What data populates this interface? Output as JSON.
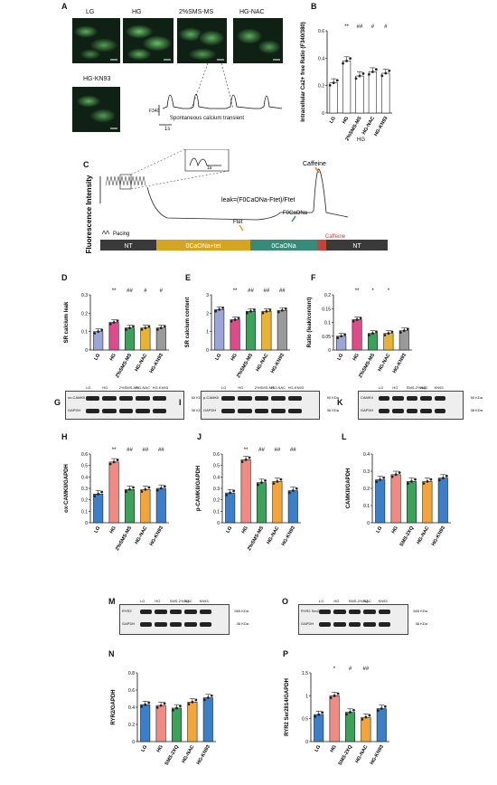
{
  "panels": {
    "A": {
      "label": "A",
      "images": [
        "LG",
        "HG",
        "2%SMS-MS",
        "HG-NAC",
        "HG-KN93"
      ],
      "trace_ylabel": "F340",
      "trace_caption": "Spontaneous calcium transient",
      "scale": "1s"
    },
    "B": {
      "label": "B",
      "group": "HG"
    },
    "C": {
      "label": "C",
      "ylabel": "Fluorescence Intensity",
      "formula": "leak=(F0CaONa-Ftet)/Ftet",
      "caffeine": "Caffeine",
      "pacing": "Pacing",
      "ftet": "Ftet",
      "f0": "F0CaONa",
      "segments": [
        "NT",
        "0CaONa+tet",
        "0CaONa",
        "Caffeine",
        "NT"
      ],
      "inset_label": "1s"
    },
    "D": {
      "label": "D"
    },
    "E": {
      "label": "E"
    },
    "F": {
      "label": "F"
    },
    "G": {
      "label": "G",
      "lanes": [
        "LG",
        "HG",
        "2%SMS-MS",
        "HG-NAC",
        "HG-KN93"
      ],
      "rows": [
        "ox-CAMKII",
        "GAPDH"
      ],
      "kda": [
        "60 KDa",
        "36 KDa"
      ]
    },
    "I": {
      "label": "I",
      "lanes": [
        "LG",
        "HG",
        "2%SMS-MS",
        "HG-NAC",
        "HG-KN93"
      ],
      "rows": [
        "p-CAMKII",
        "GAPDH"
      ],
      "kda": [
        "50 KDa",
        "36 KDa"
      ]
    },
    "K": {
      "label": "K",
      "lanes": [
        "LG",
        "HG",
        "SMS-2%XQ",
        "NAC",
        "KN93"
      ],
      "rows": [
        "CAMKII",
        "GAPDH"
      ],
      "kda": [
        "50 KDa",
        "38 KDa"
      ]
    },
    "M": {
      "label": "M",
      "lanes": [
        "LG",
        "HG",
        "SMS-2%XQ",
        "NAC",
        "KN93"
      ],
      "rows": [
        "RYR2",
        "GAPDH"
      ],
      "kda": [
        "565 KDa",
        "38 KDa"
      ]
    },
    "O": {
      "label": "O",
      "lanes": [
        "LG",
        "HG",
        "SMS-2%XQ",
        "NAC",
        "KN93"
      ],
      "rows": [
        "RYR2 Ser2814",
        "GAPDH"
      ],
      "kda": [
        "565 KDa",
        "38 KDa"
      ]
    },
    "H": {
      "label": "H"
    },
    "J": {
      "label": "J"
    },
    "L": {
      "label": "L"
    },
    "N": {
      "label": "N"
    },
    "P": {
      "label": "P"
    }
  },
  "chart_data": [
    {
      "id": "B",
      "type": "bar",
      "categories": [
        "LG",
        "HG",
        "2%SMS-MS",
        "HG-NAC",
        "HG-KN93"
      ],
      "values": [
        0.22,
        0.38,
        0.27,
        0.3,
        0.29
      ],
      "ylabel": "Intracellular Ca2+ free Ratio (F340/380)",
      "ylim": [
        0,
        0.6
      ],
      "yticks": [
        0,
        0.2,
        0.4,
        0.6
      ],
      "sig": [
        "",
        "**",
        "##",
        "#",
        "#"
      ],
      "colors": [
        "#ffffff",
        "#ffffff",
        "#ffffff",
        "#ffffff",
        "#ffffff"
      ]
    },
    {
      "id": "D",
      "type": "bar",
      "categories": [
        "LG",
        "HG",
        "2%SMS-MS",
        "HG-NAC",
        "HG-KN93"
      ],
      "values": [
        0.1,
        0.15,
        0.12,
        0.12,
        0.12
      ],
      "ylabel": "SR calcium leak",
      "ylim": [
        0,
        0.3
      ],
      "yticks": [
        0,
        0.1,
        0.2,
        0.3
      ],
      "sig": [
        "",
        "**",
        "##",
        "#",
        "#"
      ],
      "colors": [
        "#9aa6d8",
        "#e04a8a",
        "#3aa35a",
        "#e8b232",
        "#9a9a9a"
      ]
    },
    {
      "id": "E",
      "type": "bar",
      "categories": [
        "LG",
        "HG",
        "2%SMS-MS",
        "HG-NAC",
        "HG-KN93"
      ],
      "values": [
        2.2,
        1.65,
        2.1,
        2.1,
        2.15
      ],
      "ylabel": "SR calcium content",
      "ylim": [
        0,
        3
      ],
      "yticks": [
        0,
        1,
        2,
        3
      ],
      "sig": [
        "",
        "**",
        "##",
        "##",
        "##"
      ],
      "colors": [
        "#9aa6d8",
        "#e04a8a",
        "#3aa35a",
        "#e8b232",
        "#9a9a9a"
      ]
    },
    {
      "id": "F",
      "type": "bar",
      "categories": [
        "LG",
        "HG",
        "2%SMS-MS",
        "HG-NAC",
        "HG-KN93"
      ],
      "values": [
        0.05,
        0.11,
        0.06,
        0.06,
        0.07
      ],
      "ylabel": "Ratio (leak/content)",
      "ylim": [
        0,
        0.2
      ],
      "yticks": [
        0,
        0.05,
        0.1,
        0.15,
        0.2
      ],
      "sig": [
        "",
        "**",
        "*",
        "*",
        ""
      ],
      "colors": [
        "#9aa6d8",
        "#e04a8a",
        "#3aa35a",
        "#e8b232",
        "#9a9a9a"
      ]
    },
    {
      "id": "H",
      "type": "bar",
      "categories": [
        "LG",
        "HG",
        "2%SMS-MS",
        "HG-NAC",
        "HG-KN93"
      ],
      "values": [
        0.25,
        0.53,
        0.29,
        0.29,
        0.3
      ],
      "ylabel": "ox-CAMKII/GAPDH",
      "ylim": [
        0,
        0.6
      ],
      "yticks": [
        0,
        0.1,
        0.2,
        0.3,
        0.4,
        0.5,
        0.6
      ],
      "sig": [
        "",
        "**",
        "##",
        "##",
        "##"
      ],
      "colors": [
        "#3b7fc9",
        "#f08a82",
        "#3aa35a",
        "#f3a43b",
        "#3b7fc9"
      ]
    },
    {
      "id": "J",
      "type": "bar",
      "categories": [
        "LG",
        "HG",
        "2%SMS-MS",
        "HG-NAC",
        "HG-KN93"
      ],
      "values": [
        0.26,
        0.55,
        0.35,
        0.36,
        0.28
      ],
      "ylabel": "p-CAMKII/GAPDH",
      "ylim": [
        0,
        0.6
      ],
      "yticks": [
        0,
        0.1,
        0.2,
        0.3,
        0.4,
        0.5,
        0.6
      ],
      "sig": [
        "",
        "**",
        "##",
        "##",
        "##"
      ],
      "colors": [
        "#3b7fc9",
        "#f08a82",
        "#3aa35a",
        "#f3a43b",
        "#3b7fc9"
      ]
    },
    {
      "id": "L",
      "type": "bar",
      "categories": [
        "LG",
        "HG",
        "SMS-2XQ",
        "HG-NAC",
        "HG-KN93"
      ],
      "values": [
        0.25,
        0.28,
        0.24,
        0.24,
        0.26
      ],
      "ylabel": "CAMKII/GAPDH",
      "ylim": [
        0,
        0.4
      ],
      "yticks": [
        0,
        0.1,
        0.2,
        0.3,
        0.4
      ],
      "sig": [
        "",
        "",
        "",
        "",
        ""
      ],
      "colors": [
        "#3b7fc9",
        "#f08a82",
        "#3aa35a",
        "#f3a43b",
        "#3b7fc9"
      ]
    },
    {
      "id": "N",
      "type": "bar",
      "categories": [
        "LG",
        "HG",
        "SMS-2XQ",
        "HG-NAC",
        "HG-KN93"
      ],
      "values": [
        0.43,
        0.42,
        0.39,
        0.46,
        0.51
      ],
      "ylabel": "RYR2/GAPDH",
      "ylim": [
        0,
        0.8
      ],
      "yticks": [
        0,
        0.2,
        0.4,
        0.6,
        0.8
      ],
      "sig": [
        "",
        "",
        "",
        "",
        ""
      ],
      "colors": [
        "#3b7fc9",
        "#f08a82",
        "#3aa35a",
        "#f3a43b",
        "#3b7fc9"
      ]
    },
    {
      "id": "P",
      "type": "bar",
      "categories": [
        "LG",
        "HG",
        "SMS-2XQ",
        "HG-NAC",
        "HG-KN93"
      ],
      "values": [
        0.59,
        1.0,
        0.64,
        0.53,
        0.72
      ],
      "ylabel": "RYR2 Ser2814/GAPDH",
      "ylim": [
        0,
        1.5
      ],
      "yticks": [
        0,
        0.5,
        1.0,
        1.5
      ],
      "sig": [
        "",
        "*",
        "#",
        "##",
        ""
      ],
      "colors": [
        "#3b7fc9",
        "#f08a82",
        "#3aa35a",
        "#f3a43b",
        "#3b7fc9"
      ]
    }
  ]
}
